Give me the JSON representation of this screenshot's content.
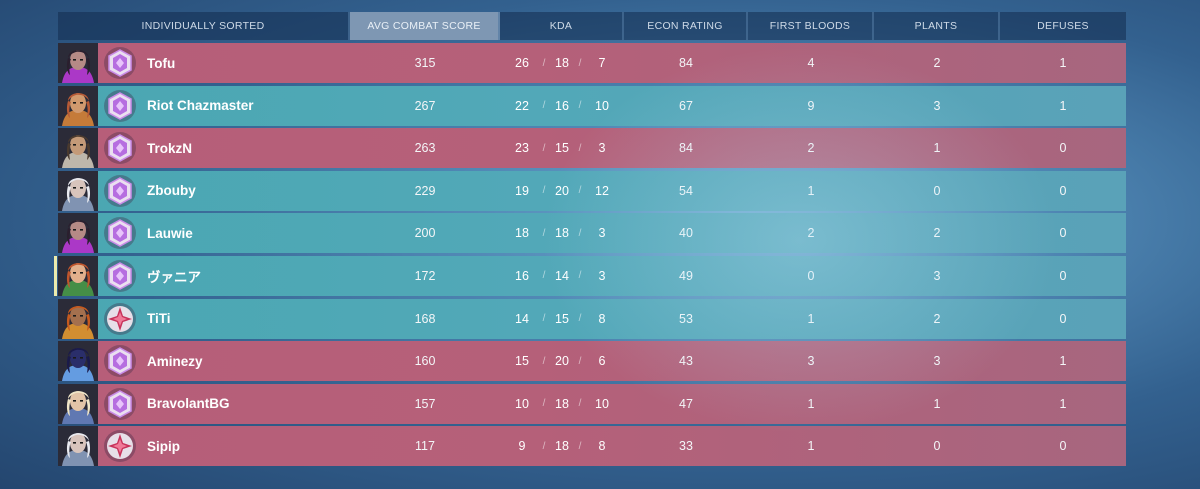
{
  "columns": {
    "player": "INDIVIDUALLY SORTED",
    "acs": "AVG COMBAT SCORE",
    "kda": "KDA",
    "econ": "ECON RATING",
    "first_bloods": "FIRST BLOODS",
    "plants": "PLANTS",
    "defuses": "DEFUSES"
  },
  "colors": {
    "red_team": "#b75e79",
    "teal_team": "#4aa7b2",
    "self_marker": "#ecebad",
    "rank_purple": "#c98be8",
    "rank_crimson": "#c7325a"
  },
  "players": [
    {
      "name": "Tofu",
      "team": "red",
      "acs": "315",
      "kills": "26",
      "deaths": "18",
      "assists": "7",
      "econ": "84",
      "first_bloods": "4",
      "plants": "2",
      "defuses": "1",
      "agent_icon": "reyna-icon",
      "rank_icon": "rank-amethyst-icon"
    },
    {
      "name": "Riot Chazmaster",
      "team": "teal",
      "acs": "267",
      "kills": "22",
      "deaths": "16",
      "assists": "10",
      "econ": "67",
      "first_bloods": "9",
      "plants": "3",
      "defuses": "1",
      "agent_icon": "brimstone-icon",
      "rank_icon": "rank-amethyst-icon"
    },
    {
      "name": "TrokzN",
      "team": "red",
      "acs": "263",
      "kills": "23",
      "deaths": "15",
      "assists": "3",
      "econ": "84",
      "first_bloods": "2",
      "plants": "1",
      "defuses": "0",
      "agent_icon": "cypher-icon",
      "rank_icon": "rank-amethyst-icon"
    },
    {
      "name": "Zbouby",
      "team": "teal",
      "acs": "229",
      "kills": "19",
      "deaths": "20",
      "assists": "12",
      "econ": "54",
      "first_bloods": "1",
      "plants": "0",
      "defuses": "0",
      "agent_icon": "jett-icon",
      "rank_icon": "rank-amethyst-icon"
    },
    {
      "name": "Lauwie",
      "team": "teal",
      "acs": "200",
      "kills": "18",
      "deaths": "18",
      "assists": "3",
      "econ": "40",
      "first_bloods": "2",
      "plants": "2",
      "defuses": "0",
      "agent_icon": "reyna-icon",
      "rank_icon": "rank-amethyst-icon"
    },
    {
      "name": "ヴァニア",
      "team": "teal",
      "self": true,
      "acs": "172",
      "kills": "16",
      "deaths": "14",
      "assists": "3",
      "econ": "49",
      "first_bloods": "0",
      "plants": "3",
      "defuses": "0",
      "agent_icon": "skye-icon",
      "rank_icon": "rank-amethyst-icon"
    },
    {
      "name": "TiTi",
      "team": "teal",
      "acs": "168",
      "kills": "14",
      "deaths": "15",
      "assists": "8",
      "econ": "53",
      "first_bloods": "1",
      "plants": "2",
      "defuses": "0",
      "agent_icon": "phoenix-icon",
      "rank_icon": "rank-crimson-icon"
    },
    {
      "name": "Aminezy",
      "team": "red",
      "acs": "160",
      "kills": "15",
      "deaths": "20",
      "assists": "6",
      "econ": "43",
      "first_bloods": "3",
      "plants": "3",
      "defuses": "1",
      "agent_icon": "omen-icon",
      "rank_icon": "rank-amethyst-icon"
    },
    {
      "name": "BravolantBG",
      "team": "red",
      "acs": "157",
      "kills": "10",
      "deaths": "18",
      "assists": "10",
      "econ": "47",
      "first_bloods": "1",
      "plants": "1",
      "defuses": "1",
      "agent_icon": "sova-icon",
      "rank_icon": "rank-amethyst-icon"
    },
    {
      "name": "Sipip",
      "team": "red",
      "acs": "117",
      "kills": "9",
      "deaths": "18",
      "assists": "8",
      "econ": "33",
      "first_bloods": "1",
      "plants": "0",
      "defuses": "0",
      "agent_icon": "jett-icon",
      "rank_icon": "rank-crimson-icon"
    }
  ]
}
